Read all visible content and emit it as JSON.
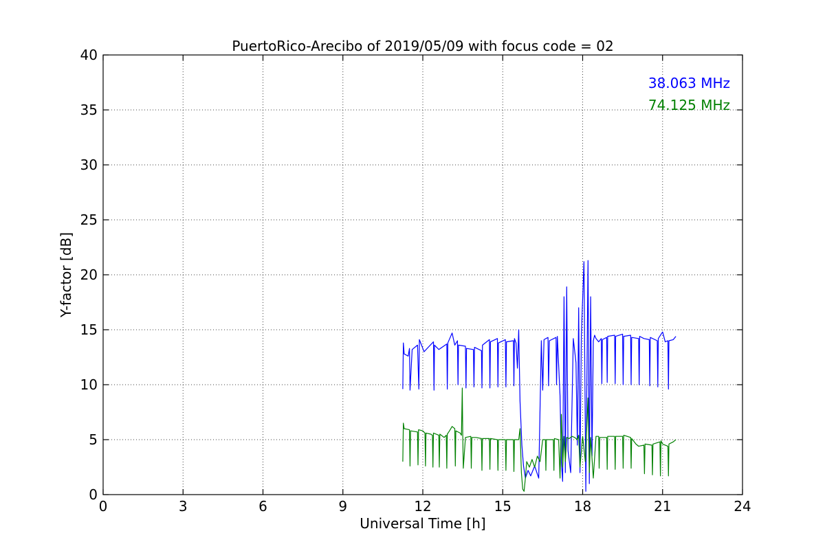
{
  "chart_data": {
    "type": "line",
    "title": "PuertoRico-Arecibo of 2019/05/09 with focus code = 02",
    "xlabel": "Universal Time [h]",
    "ylabel": "Y-factor [dB]",
    "xlim": [
      0,
      24
    ],
    "ylim": [
      0,
      40
    ],
    "xticks": [
      0,
      3,
      6,
      9,
      12,
      15,
      18,
      21,
      24
    ],
    "yticks": [
      0,
      5,
      10,
      15,
      20,
      25,
      30,
      35,
      40
    ],
    "grid": true,
    "legend_position": "top-right",
    "series": [
      {
        "name": "38.063 MHz",
        "color": "#0000ff",
        "x": [
          11.25,
          11.27,
          11.3,
          11.45,
          11.5,
          11.52,
          11.6,
          11.8,
          11.85,
          11.87,
          12.0,
          12.05,
          12.2,
          12.4,
          12.42,
          12.44,
          12.6,
          12.9,
          12.92,
          12.94,
          13.1,
          13.2,
          13.3,
          13.32,
          13.34,
          13.6,
          13.62,
          13.64,
          13.9,
          13.92,
          13.94,
          14.2,
          14.22,
          14.24,
          14.5,
          14.52,
          14.54,
          14.8,
          14.82,
          14.84,
          15.1,
          15.12,
          15.14,
          15.4,
          15.42,
          15.44,
          15.5,
          15.55,
          15.6,
          15.65,
          15.72,
          15.78,
          15.85,
          15.95,
          16.05,
          16.2,
          16.35,
          16.45,
          16.5,
          16.55,
          16.7,
          16.72,
          16.75,
          17.0,
          17.02,
          17.05,
          17.15,
          17.2,
          17.25,
          17.3,
          17.35,
          17.4,
          17.45,
          17.55,
          17.65,
          17.75,
          17.8,
          17.85,
          17.9,
          17.95,
          18.05,
          18.12,
          18.2,
          18.25,
          18.3,
          18.35,
          18.4,
          18.45,
          18.5,
          18.6,
          18.7,
          18.72,
          18.74,
          18.9,
          18.92,
          18.94,
          19.2,
          19.22,
          19.24,
          19.5,
          19.52,
          19.54,
          19.8,
          19.82,
          19.84,
          20.1,
          20.12,
          20.14,
          20.3,
          20.5,
          20.52,
          20.54,
          20.8,
          20.82,
          20.84,
          21.0,
          21.1,
          21.2,
          21.22,
          21.24,
          21.4,
          21.5
        ],
        "y": [
          9.6,
          13.8,
          12.8,
          12.6,
          13.3,
          9.5,
          13.2,
          13.6,
          9.6,
          14.1,
          13.3,
          13.0,
          13.4,
          13.9,
          9.5,
          13.6,
          13.2,
          13.7,
          9.6,
          13.8,
          14.7,
          13.6,
          14.0,
          10.0,
          13.6,
          13.5,
          9.7,
          13.3,
          13.2,
          9.8,
          13.4,
          13.1,
          9.7,
          13.6,
          14.1,
          9.7,
          13.9,
          14.2,
          9.8,
          13.8,
          14.1,
          9.8,
          13.9,
          14.0,
          9.9,
          14.2,
          13.8,
          11.5,
          15.0,
          8.5,
          4.5,
          2.6,
          1.5,
          2.2,
          1.7,
          2.6,
          1.5,
          14.0,
          9.5,
          14.1,
          14.3,
          9.9,
          14.0,
          14.3,
          10.0,
          14.4,
          9.0,
          3.0,
          1.2,
          18.0,
          2.0,
          18.9,
          4.0,
          2.0,
          14.2,
          12.0,
          4.5,
          17.0,
          2.0,
          14.5,
          21.2,
          0.3,
          21.3,
          1.0,
          18.0,
          3.5,
          14.0,
          14.5,
          14.2,
          13.9,
          14.2,
          10.1,
          14.1,
          14.3,
          10.2,
          14.4,
          14.5,
          10.1,
          14.4,
          14.6,
          10.0,
          14.4,
          14.5,
          10.0,
          14.3,
          14.2,
          10.0,
          14.4,
          14.2,
          14.1,
          9.9,
          14.3,
          14.0,
          9.8,
          14.2,
          14.8,
          13.9,
          14.0,
          9.6,
          14.0,
          14.1,
          14.4
        ]
      },
      {
        "name": "74.125 MHz",
        "color": "#008000",
        "x": [
          11.25,
          11.27,
          11.3,
          11.5,
          11.52,
          11.54,
          11.8,
          11.82,
          11.84,
          12.0,
          12.08,
          12.1,
          12.12,
          12.3,
          12.36,
          12.38,
          12.4,
          12.6,
          12.62,
          12.64,
          12.8,
          12.88,
          12.9,
          12.92,
          13.0,
          13.1,
          13.2,
          13.22,
          13.24,
          13.4,
          13.45,
          13.48,
          13.5,
          13.52,
          13.6,
          13.8,
          13.82,
          13.84,
          14.0,
          14.2,
          14.22,
          14.24,
          14.5,
          14.52,
          14.54,
          14.8,
          14.82,
          14.84,
          15.1,
          15.12,
          15.14,
          15.4,
          15.42,
          15.44,
          15.6,
          15.65,
          15.7,
          15.75,
          15.8,
          15.85,
          15.9,
          16.0,
          16.1,
          16.2,
          16.3,
          16.4,
          16.5,
          16.6,
          16.62,
          16.64,
          16.9,
          16.92,
          16.94,
          17.1,
          17.15,
          17.2,
          17.25,
          17.3,
          17.35,
          17.4,
          17.5,
          17.6,
          17.7,
          17.8,
          17.85,
          17.9,
          18.0,
          18.1,
          18.2,
          18.25,
          18.3,
          18.4,
          18.5,
          18.6,
          18.62,
          18.64,
          18.9,
          18.92,
          18.94,
          19.2,
          19.22,
          19.24,
          19.5,
          19.52,
          19.54,
          19.8,
          19.82,
          19.84,
          20.0,
          20.1,
          20.3,
          20.32,
          20.34,
          20.6,
          20.62,
          20.64,
          20.9,
          20.92,
          20.94,
          21.0,
          21.2,
          21.22,
          21.24,
          21.4,
          21.5
        ],
        "y": [
          3.0,
          6.5,
          6.0,
          5.9,
          2.6,
          5.8,
          5.7,
          2.7,
          5.9,
          5.8,
          5.6,
          2.6,
          5.6,
          5.5,
          5.4,
          2.5,
          5.6,
          5.4,
          2.5,
          5.5,
          5.2,
          5.4,
          2.4,
          5.5,
          5.8,
          6.2,
          6.0,
          2.6,
          5.8,
          5.6,
          5.4,
          9.7,
          5.4,
          2.4,
          5.2,
          5.3,
          2.4,
          5.2,
          5.2,
          5.1,
          2.2,
          5.1,
          5.1,
          2.3,
          5.1,
          5.0,
          2.2,
          5.0,
          5.0,
          2.2,
          5.0,
          5.0,
          2.1,
          5.0,
          5.0,
          6.0,
          2.0,
          0.5,
          0.3,
          1.5,
          3.0,
          2.5,
          3.2,
          2.5,
          3.5,
          3.0,
          5.0,
          5.0,
          2.2,
          5.0,
          5.0,
          2.2,
          5.1,
          5.0,
          1.5,
          7.3,
          2.5,
          5.3,
          3.0,
          5.2,
          5.1,
          5.3,
          5.2,
          5.0,
          5.4,
          2.5,
          5.3,
          3.0,
          8.8,
          2.0,
          5.2,
          1.5,
          5.3,
          5.3,
          2.4,
          5.2,
          5.2,
          2.3,
          5.3,
          5.3,
          2.3,
          5.3,
          5.3,
          2.4,
          5.4,
          5.2,
          2.4,
          5.1,
          4.6,
          4.4,
          4.5,
          1.9,
          4.6,
          4.5,
          1.8,
          4.6,
          4.8,
          1.7,
          4.9,
          4.6,
          4.4,
          1.7,
          4.6,
          4.8,
          5.0
        ]
      }
    ]
  }
}
